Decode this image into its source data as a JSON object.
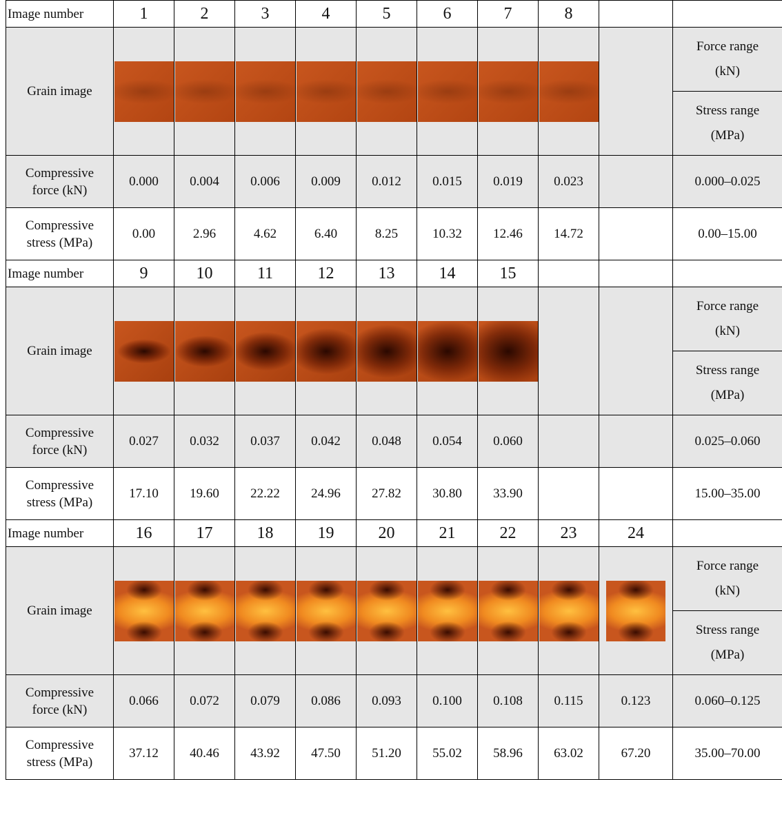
{
  "labels": {
    "image_number": "Image number",
    "grain_image": "Grain image",
    "force": "Compressive force (kN)",
    "stress": "Compressive stress (MPa)",
    "force_range": "Force range (kN)",
    "stress_range": "Stress range (MPa)"
  },
  "blocks": [
    {
      "image_numbers": [
        1,
        2,
        3,
        4,
        5,
        6,
        7,
        8,
        null
      ],
      "force": [
        "0.000",
        "0.004",
        "0.006",
        "0.009",
        "0.012",
        "0.015",
        "0.019",
        "0.023",
        null
      ],
      "stress": [
        "0.00",
        "2.96",
        "4.62",
        "6.40",
        "8.25",
        "10.32",
        "12.46",
        "14.72",
        null
      ],
      "force_range": "0.000–0.025",
      "stress_range": "0.00–15.00"
    },
    {
      "image_numbers": [
        9,
        10,
        11,
        12,
        13,
        14,
        15,
        null,
        null
      ],
      "force": [
        "0.027",
        "0.032",
        "0.037",
        "0.042",
        "0.048",
        "0.054",
        "0.060",
        null,
        null
      ],
      "stress": [
        "17.10",
        "19.60",
        "22.22",
        "24.96",
        "27.82",
        "30.80",
        "33.90",
        null,
        null
      ],
      "force_range": "0.025–0.060",
      "stress_range": "15.00–35.00"
    },
    {
      "image_numbers": [
        16,
        17,
        18,
        19,
        20,
        21,
        22,
        23,
        24
      ],
      "force": [
        "0.066",
        "0.072",
        "0.079",
        "0.086",
        "0.093",
        "0.100",
        "0.108",
        "0.115",
        "0.123"
      ],
      "stress": [
        "37.12",
        "40.46",
        "43.92",
        "47.50",
        "51.20",
        "55.02",
        "58.96",
        "63.02",
        "67.20"
      ],
      "force_range": "0.060–0.125",
      "stress_range": "35.00–70.00"
    }
  ]
}
